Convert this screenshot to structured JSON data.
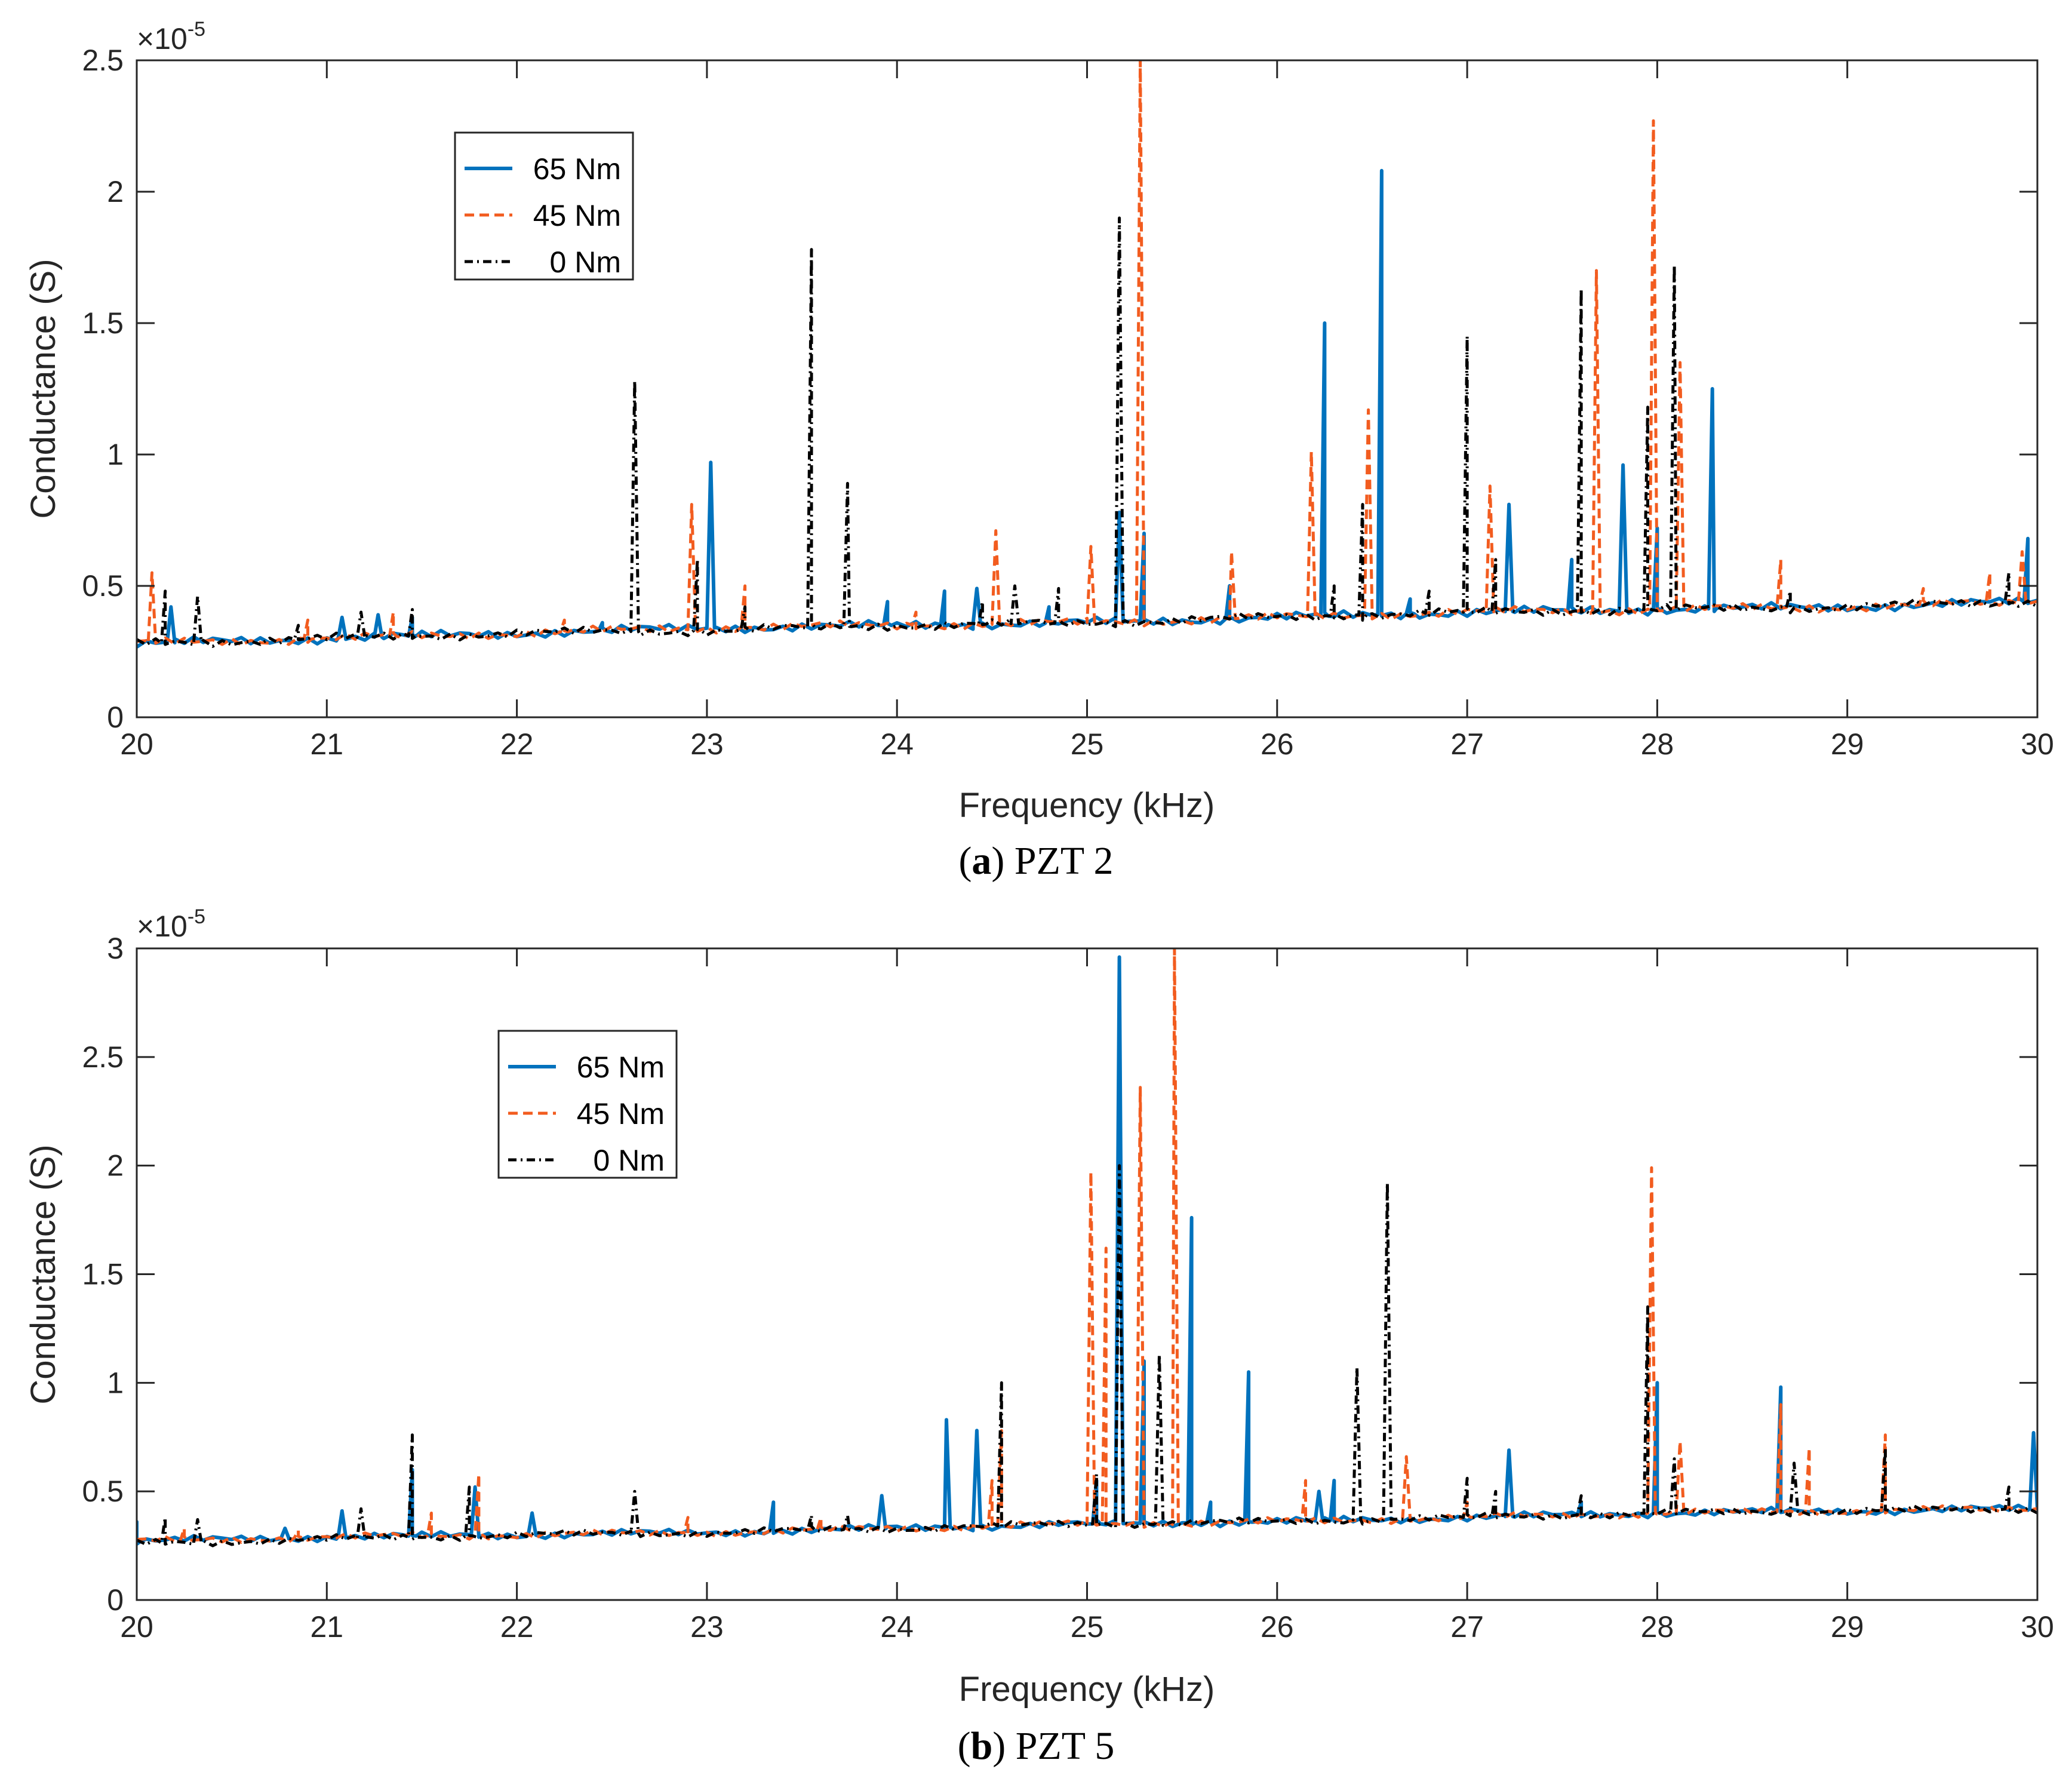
{
  "chart_data": [
    {
      "type": "line",
      "caption_label": "a",
      "caption_text": "PZT 2",
      "xlabel": "Frequency (kHz)",
      "ylabel": "Conductance (S)",
      "exponent_base": "×10",
      "exponent_power": "-5",
      "xlim": [
        20,
        30
      ],
      "ylim": [
        0,
        2.5
      ],
      "xticks": [
        20,
        21,
        22,
        23,
        24,
        25,
        26,
        27,
        28,
        29,
        30
      ],
      "yticks": [
        0,
        0.5,
        1,
        1.5,
        2,
        2.5
      ],
      "ytick_labels": [
        "0",
        "0.5",
        "1",
        "1.5",
        "2",
        "2.5"
      ],
      "legend_position": "upper-left",
      "series": [
        {
          "name": "65 Nm",
          "color": "#0072BD",
          "style": "solid",
          "baseline": [
            [
              20,
              0.28
            ],
            [
              21,
              0.3
            ],
            [
              22,
              0.32
            ],
            [
              23,
              0.34
            ],
            [
              24,
              0.35
            ],
            [
              25,
              0.36
            ],
            [
              26,
              0.38
            ],
            [
              27,
              0.4
            ],
            [
              28,
              0.41
            ],
            [
              29,
              0.42
            ],
            [
              30,
              0.44
            ]
          ],
          "peaks": [
            [
              20.18,
              0.42
            ],
            [
              21.08,
              0.38
            ],
            [
              21.27,
              0.39
            ],
            [
              21.45,
              0.38
            ],
            [
              22.45,
              0.36
            ],
            [
              23.02,
              0.97
            ],
            [
              23.95,
              0.44
            ],
            [
              24.25,
              0.48
            ],
            [
              24.42,
              0.49
            ],
            [
              24.8,
              0.42
            ],
            [
              25.17,
              0.78
            ],
            [
              25.3,
              0.7
            ],
            [
              25.75,
              0.5
            ],
            [
              26.25,
              1.5
            ],
            [
              26.55,
              2.08
            ],
            [
              26.7,
              0.45
            ],
            [
              27.22,
              0.81
            ],
            [
              27.55,
              0.6
            ],
            [
              27.82,
              0.96
            ],
            [
              28.0,
              0.72
            ],
            [
              28.29,
              1.25
            ],
            [
              29.95,
              0.68
            ]
          ]
        },
        {
          "name": "45 Nm",
          "color": "#F25C1F",
          "style": "dashed",
          "baseline": [
            [
              20,
              0.28
            ],
            [
              21,
              0.3
            ],
            [
              22,
              0.32
            ],
            [
              23,
              0.34
            ],
            [
              24,
              0.35
            ],
            [
              25,
              0.36
            ],
            [
              26,
              0.38
            ],
            [
              27,
              0.4
            ],
            [
              28,
              0.41
            ],
            [
              29,
              0.42
            ],
            [
              30,
              0.44
            ]
          ],
          "peaks": [
            [
              20.08,
              0.55
            ],
            [
              20.9,
              0.37
            ],
            [
              21.35,
              0.4
            ],
            [
              22.25,
              0.37
            ],
            [
              22.92,
              0.81
            ],
            [
              23.2,
              0.5
            ],
            [
              24.1,
              0.4
            ],
            [
              24.52,
              0.71
            ],
            [
              25.02,
              0.65
            ],
            [
              25.28,
              2.5
            ],
            [
              25.76,
              0.63
            ],
            [
              26.18,
              1.01
            ],
            [
              26.48,
              1.17
            ],
            [
              27.12,
              0.88
            ],
            [
              27.68,
              1.7
            ],
            [
              27.98,
              2.27
            ],
            [
              28.12,
              1.35
            ],
            [
              28.65,
              0.6
            ],
            [
              29.4,
              0.49
            ],
            [
              29.75,
              0.55
            ],
            [
              29.92,
              0.63
            ]
          ]
        },
        {
          "name": "0 Nm",
          "color": "#000000",
          "style": "dashdot",
          "baseline": [
            [
              20,
              0.28
            ],
            [
              21,
              0.3
            ],
            [
              22,
              0.32
            ],
            [
              23,
              0.33
            ],
            [
              24,
              0.35
            ],
            [
              25,
              0.36
            ],
            [
              26,
              0.38
            ],
            [
              27,
              0.4
            ],
            [
              28,
              0.41
            ],
            [
              29,
              0.42
            ],
            [
              30,
              0.44
            ]
          ],
          "peaks": [
            [
              20.15,
              0.48
            ],
            [
              20.32,
              0.46
            ],
            [
              20.85,
              0.35
            ],
            [
              21.18,
              0.4
            ],
            [
              21.45,
              0.41
            ],
            [
              22.62,
              1.28
            ],
            [
              22.95,
              0.6
            ],
            [
              23.2,
              0.42
            ],
            [
              23.55,
              1.78
            ],
            [
              23.74,
              0.89
            ],
            [
              24.45,
              0.44
            ],
            [
              24.62,
              0.5
            ],
            [
              24.85,
              0.49
            ],
            [
              25.17,
              1.9
            ],
            [
              26.3,
              0.5
            ],
            [
              26.45,
              0.81
            ],
            [
              26.8,
              0.48
            ],
            [
              27.0,
              1.45
            ],
            [
              27.15,
              0.6
            ],
            [
              27.6,
              1.63
            ],
            [
              27.95,
              1.18
            ],
            [
              28.09,
              1.72
            ],
            [
              28.7,
              0.48
            ],
            [
              29.85,
              0.55
            ]
          ]
        }
      ]
    },
    {
      "type": "line",
      "caption_label": "b",
      "caption_text": "PZT 5",
      "xlabel": "Frequency (kHz)",
      "ylabel": "Conductance (S)",
      "exponent_base": "×10",
      "exponent_power": "-5",
      "xlim": [
        20,
        30
      ],
      "ylim": [
        0,
        3
      ],
      "xticks": [
        20,
        21,
        22,
        23,
        24,
        25,
        26,
        27,
        28,
        29,
        30
      ],
      "yticks": [
        0,
        0.5,
        1,
        1.5,
        2,
        2.5,
        3
      ],
      "ytick_labels": [
        "0",
        "0.5",
        "1",
        "1.5",
        "2",
        "2.5",
        "3"
      ],
      "legend_position": "upper-left",
      "series": [
        {
          "name": "65 Nm",
          "color": "#0072BD",
          "style": "solid",
          "baseline": [
            [
              20,
              0.27
            ],
            [
              21,
              0.29
            ],
            [
              22,
              0.3
            ],
            [
              23,
              0.31
            ],
            [
              24,
              0.33
            ],
            [
              25,
              0.35
            ],
            [
              26,
              0.36
            ],
            [
              27,
              0.38
            ],
            [
              28,
              0.4
            ],
            [
              29,
              0.41
            ],
            [
              30,
              0.42
            ]
          ],
          "peaks": [
            [
              20.0,
              0.36
            ],
            [
              20.78,
              0.33
            ],
            [
              21.08,
              0.41
            ],
            [
              21.45,
              0.6
            ],
            [
              21.78,
              0.52
            ],
            [
              22.08,
              0.4
            ],
            [
              23.35,
              0.45
            ],
            [
              23.92,
              0.48
            ],
            [
              24.26,
              0.83
            ],
            [
              24.42,
              0.78
            ],
            [
              25.05,
              0.55
            ],
            [
              25.17,
              2.96
            ],
            [
              25.3,
              1.1
            ],
            [
              25.55,
              1.76
            ],
            [
              25.65,
              0.45
            ],
            [
              25.85,
              1.05
            ],
            [
              26.22,
              0.5
            ],
            [
              26.3,
              0.55
            ],
            [
              27.22,
              0.69
            ],
            [
              27.6,
              0.45
            ],
            [
              28.0,
              1.0
            ],
            [
              28.65,
              0.98
            ],
            [
              29.98,
              0.77
            ]
          ]
        },
        {
          "name": "45 Nm",
          "color": "#F25C1F",
          "style": "dashed",
          "baseline": [
            [
              20,
              0.27
            ],
            [
              21,
              0.29
            ],
            [
              22,
              0.3
            ],
            [
              23,
              0.31
            ],
            [
              24,
              0.33
            ],
            [
              25,
              0.35
            ],
            [
              26,
              0.36
            ],
            [
              27,
              0.38
            ],
            [
              28,
              0.4
            ],
            [
              29,
              0.41
            ],
            [
              30,
              0.42
            ]
          ],
          "peaks": [
            [
              20.25,
              0.33
            ],
            [
              20.85,
              0.32
            ],
            [
              21.55,
              0.4
            ],
            [
              21.8,
              0.58
            ],
            [
              22.9,
              0.38
            ],
            [
              23.6,
              0.38
            ],
            [
              24.5,
              0.55
            ],
            [
              24.55,
              0.78
            ],
            [
              25.02,
              1.97
            ],
            [
              25.1,
              1.62
            ],
            [
              25.28,
              2.36
            ],
            [
              25.46,
              3.0
            ],
            [
              26.15,
              0.55
            ],
            [
              26.68,
              0.66
            ],
            [
              27.0,
              0.45
            ],
            [
              27.97,
              1.99
            ],
            [
              28.12,
              0.73
            ],
            [
              28.65,
              0.9
            ],
            [
              28.8,
              0.7
            ],
            [
              29.2,
              0.76
            ],
            [
              29.75,
              0.43
            ]
          ]
        },
        {
          "name": "0 Nm",
          "color": "#000000",
          "style": "dashdot",
          "baseline": [
            [
              20,
              0.26
            ],
            [
              21,
              0.28
            ],
            [
              22,
              0.3
            ],
            [
              23,
              0.31
            ],
            [
              24,
              0.33
            ],
            [
              25,
              0.35
            ],
            [
              26,
              0.36
            ],
            [
              27,
              0.38
            ],
            [
              28,
              0.4
            ],
            [
              29,
              0.41
            ],
            [
              30,
              0.42
            ]
          ],
          "peaks": [
            [
              20.15,
              0.38
            ],
            [
              20.32,
              0.37
            ],
            [
              21.18,
              0.42
            ],
            [
              21.45,
              0.76
            ],
            [
              21.75,
              0.52
            ],
            [
              22.62,
              0.5
            ],
            [
              23.55,
              0.39
            ],
            [
              23.74,
              0.39
            ],
            [
              24.55,
              1.0
            ],
            [
              25.05,
              0.58
            ],
            [
              25.17,
              2.0
            ],
            [
              25.38,
              1.13
            ],
            [
              26.42,
              1.07
            ],
            [
              26.58,
              1.92
            ],
            [
              27.0,
              0.56
            ],
            [
              27.15,
              0.5
            ],
            [
              27.6,
              0.48
            ],
            [
              27.95,
              1.35
            ],
            [
              28.09,
              0.65
            ],
            [
              28.72,
              0.63
            ],
            [
              29.2,
              0.7
            ],
            [
              29.85,
              0.52
            ]
          ]
        }
      ]
    }
  ]
}
